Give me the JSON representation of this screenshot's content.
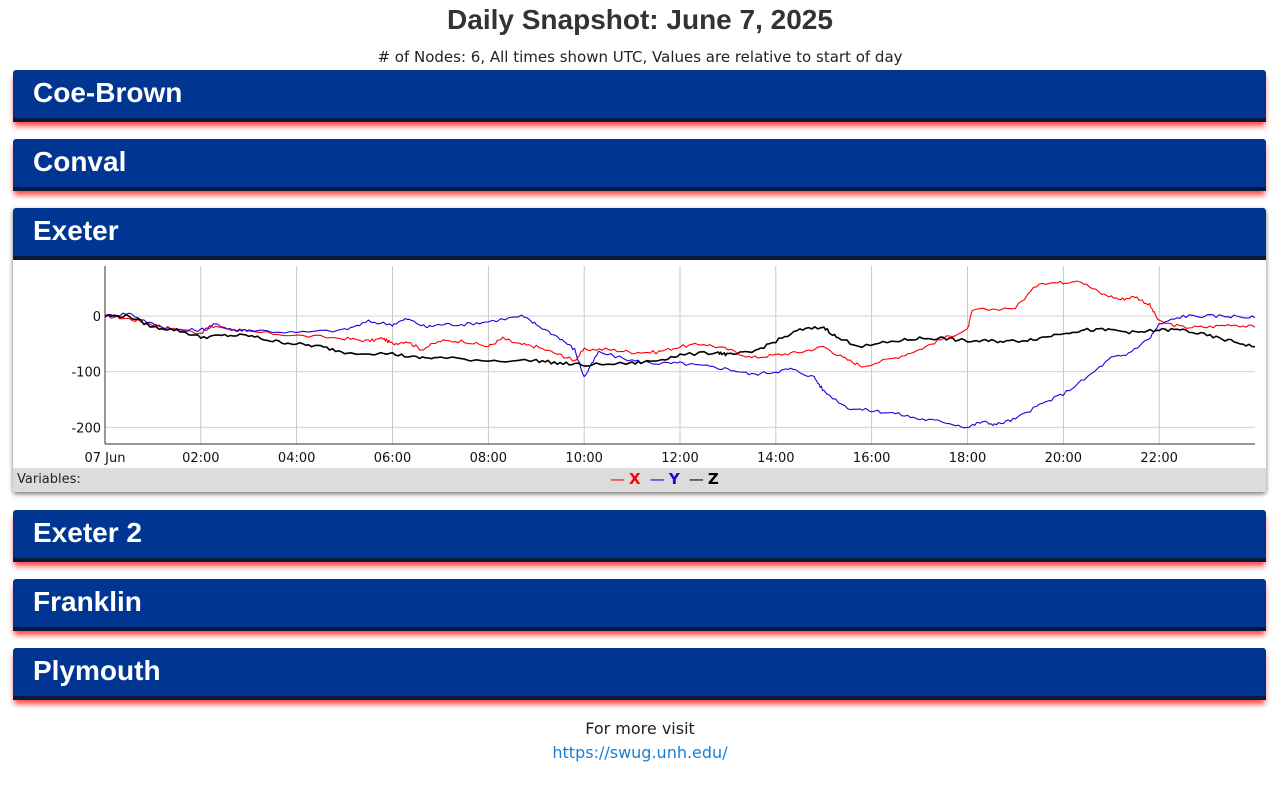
{
  "page": {
    "title": "Daily Snapshot: June 7, 2025",
    "subtitle": "# of Nodes: 6, All times shown UTC, Values are relative to start of day"
  },
  "nodes": [
    {
      "name": "Coe-Brown",
      "expanded": false
    },
    {
      "name": "Conval",
      "expanded": false
    },
    {
      "name": "Exeter",
      "expanded": true
    },
    {
      "name": "Exeter 2",
      "expanded": false
    },
    {
      "name": "Franklin",
      "expanded": false
    },
    {
      "name": "Plymouth",
      "expanded": false
    }
  ],
  "variables_label": "Variables:",
  "legend": [
    {
      "name": "X",
      "color": "#ff0000"
    },
    {
      "name": "Y",
      "color": "#2200dd"
    },
    {
      "name": "Z",
      "color": "#000000"
    }
  ],
  "footer": {
    "text": "For more visit",
    "link": "https://swug.unh.edu/"
  },
  "chart_data": {
    "type": "line",
    "node": "Exeter",
    "x_unit": "hours UTC",
    "xlim": [
      0,
      24
    ],
    "ylim": [
      -230,
      90
    ],
    "y_ticks": [
      0,
      -100,
      -200
    ],
    "y_tick_labels": [
      "0",
      "-100",
      "-200"
    ],
    "x_ticks": [
      0,
      2,
      4,
      6,
      8,
      10,
      12,
      14,
      16,
      18,
      20,
      22
    ],
    "x_tick_labels": [
      "07 Jun",
      "02:00",
      "04:00",
      "06:00",
      "08:00",
      "10:00",
      "12:00",
      "14:00",
      "16:00",
      "18:00",
      "20:00",
      "22:00"
    ],
    "grid": true,
    "series": [
      {
        "name": "X",
        "color": "#ff0000",
        "points": [
          [
            0,
            0
          ],
          [
            0.5,
            -5
          ],
          [
            1,
            -15
          ],
          [
            1.5,
            -25
          ],
          [
            2,
            -30
          ],
          [
            2.3,
            -18
          ],
          [
            2.7,
            -25
          ],
          [
            3,
            -28
          ],
          [
            4,
            -35
          ],
          [
            5,
            -40
          ],
          [
            5.5,
            -45
          ],
          [
            5.8,
            -40
          ],
          [
            6,
            -50
          ],
          [
            6.3,
            -45
          ],
          [
            6.6,
            -60
          ],
          [
            7,
            -45
          ],
          [
            7.5,
            -45
          ],
          [
            8,
            -55
          ],
          [
            8.3,
            -40
          ],
          [
            8.6,
            -50
          ],
          [
            9,
            -55
          ],
          [
            9.5,
            -70
          ],
          [
            9.8,
            -80
          ],
          [
            10,
            -60
          ],
          [
            10.5,
            -60
          ],
          [
            11,
            -65
          ],
          [
            11.5,
            -65
          ],
          [
            12,
            -55
          ],
          [
            12.5,
            -50
          ],
          [
            13,
            -60
          ],
          [
            13.5,
            -75
          ],
          [
            14,
            -70
          ],
          [
            14.5,
            -65
          ],
          [
            15,
            -55
          ],
          [
            15.4,
            -75
          ],
          [
            15.8,
            -90
          ],
          [
            16.5,
            -75
          ],
          [
            17,
            -60
          ],
          [
            17.5,
            -40
          ],
          [
            18,
            -25
          ],
          [
            18.1,
            10
          ],
          [
            19,
            15
          ],
          [
            19.5,
            60
          ],
          [
            20,
            60
          ],
          [
            20.3,
            65
          ],
          [
            20.8,
            40
          ],
          [
            21.2,
            30
          ],
          [
            21.5,
            35
          ],
          [
            21.8,
            20
          ],
          [
            22,
            -10
          ],
          [
            22.5,
            -20
          ],
          [
            23,
            -20
          ],
          [
            23.5,
            -15
          ],
          [
            24,
            -20
          ]
        ]
      },
      {
        "name": "Y",
        "color": "#2200dd",
        "points": [
          [
            0,
            0
          ],
          [
            0.5,
            5
          ],
          [
            1,
            -15
          ],
          [
            1.5,
            -25
          ],
          [
            2,
            -25
          ],
          [
            2.3,
            -15
          ],
          [
            2.7,
            -25
          ],
          [
            3,
            -25
          ],
          [
            4,
            -30
          ],
          [
            5,
            -25
          ],
          [
            5.5,
            -10
          ],
          [
            6,
            -15
          ],
          [
            6.3,
            -5
          ],
          [
            6.7,
            -20
          ],
          [
            7,
            -15
          ],
          [
            7.5,
            -15
          ],
          [
            8,
            -10
          ],
          [
            8.7,
            0
          ],
          [
            9,
            -15
          ],
          [
            9.5,
            -40
          ],
          [
            9.8,
            -60
          ],
          [
            10,
            -110
          ],
          [
            10.3,
            -65
          ],
          [
            11,
            -80
          ],
          [
            11.5,
            -85
          ],
          [
            12,
            -85
          ],
          [
            12.5,
            -90
          ],
          [
            13,
            -95
          ],
          [
            13.5,
            -105
          ],
          [
            14,
            -100
          ],
          [
            14.3,
            -95
          ],
          [
            14.8,
            -110
          ],
          [
            15,
            -135
          ],
          [
            15.5,
            -165
          ],
          [
            16,
            -170
          ],
          [
            16.5,
            -175
          ],
          [
            17,
            -185
          ],
          [
            17.5,
            -190
          ],
          [
            18,
            -200
          ],
          [
            18.3,
            -190
          ],
          [
            18.6,
            -195
          ],
          [
            19,
            -185
          ],
          [
            19.5,
            -160
          ],
          [
            20,
            -140
          ],
          [
            20.5,
            -110
          ],
          [
            21,
            -75
          ],
          [
            21.3,
            -70
          ],
          [
            21.8,
            -40
          ],
          [
            22,
            -15
          ],
          [
            22.5,
            0
          ],
          [
            23,
            0
          ],
          [
            23.5,
            0
          ],
          [
            24,
            -3
          ]
        ]
      },
      {
        "name": "Z",
        "color": "#000000",
        "points": [
          [
            0,
            0
          ],
          [
            0.5,
            0
          ],
          [
            1,
            -20
          ],
          [
            1.5,
            -25
          ],
          [
            2,
            -38
          ],
          [
            2.5,
            -35
          ],
          [
            3,
            -35
          ],
          [
            3.5,
            -45
          ],
          [
            4,
            -50
          ],
          [
            4.5,
            -55
          ],
          [
            5,
            -65
          ],
          [
            6,
            -68
          ],
          [
            6.5,
            -75
          ],
          [
            7,
            -75
          ],
          [
            8,
            -80
          ],
          [
            9,
            -80
          ],
          [
            9.5,
            -85
          ],
          [
            10,
            -88
          ],
          [
            11,
            -85
          ],
          [
            11.5,
            -80
          ],
          [
            12,
            -70
          ],
          [
            12.8,
            -65
          ],
          [
            13,
            -70
          ],
          [
            13.5,
            -65
          ],
          [
            14,
            -45
          ],
          [
            14.5,
            -25
          ],
          [
            15,
            -20
          ],
          [
            15.3,
            -40
          ],
          [
            15.8,
            -55
          ],
          [
            16.5,
            -45
          ],
          [
            17,
            -40
          ],
          [
            17.5,
            -40
          ],
          [
            18,
            -45
          ],
          [
            18.5,
            -45
          ],
          [
            19,
            -45
          ],
          [
            19.5,
            -40
          ],
          [
            20,
            -30
          ],
          [
            20.5,
            -25
          ],
          [
            21,
            -25
          ],
          [
            21.5,
            -30
          ],
          [
            22,
            -25
          ],
          [
            22.5,
            -25
          ],
          [
            23,
            -35
          ],
          [
            23.5,
            -45
          ],
          [
            24,
            -55
          ]
        ]
      }
    ]
  }
}
